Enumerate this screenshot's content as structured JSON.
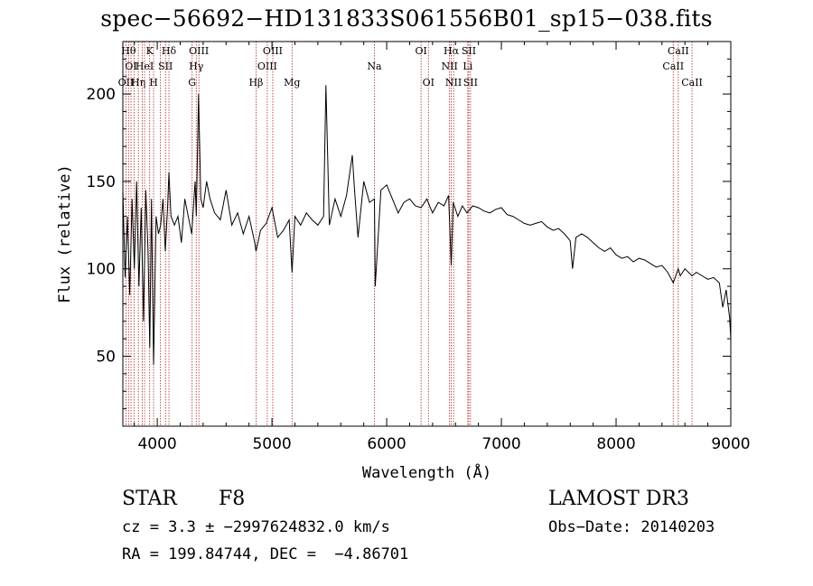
{
  "chart_data": {
    "type": "line",
    "title": "spec−56692−HD131833S061556B01_sp15−038.fits",
    "xlabel": "Wavelength (Å)",
    "ylabel": "Flux (relative)",
    "xlim": [
      3700,
      9000
    ],
    "ylim": [
      10,
      230
    ],
    "xticks": [
      4000,
      5000,
      6000,
      7000,
      8000,
      9000
    ],
    "yticks": [
      50,
      100,
      150,
      200
    ],
    "grid": false,
    "series": [
      {
        "color": "#000000",
        "x": [
          3700,
          3720,
          3740,
          3760,
          3780,
          3800,
          3820,
          3840,
          3860,
          3880,
          3900,
          3920,
          3935,
          3950,
          3968,
          3990,
          4010,
          4030,
          4050,
          4070,
          4090,
          4102,
          4120,
          4150,
          4180,
          4210,
          4240,
          4270,
          4300,
          4330,
          4340,
          4360,
          4380,
          4400,
          4430,
          4460,
          4500,
          4550,
          4600,
          4650,
          4700,
          4750,
          4800,
          4850,
          4861,
          4900,
          4950,
          5000,
          5050,
          5100,
          5150,
          5175,
          5200,
          5250,
          5300,
          5350,
          5400,
          5450,
          5470,
          5500,
          5550,
          5600,
          5650,
          5700,
          5720,
          5750,
          5800,
          5850,
          5893,
          5900,
          5950,
          6000,
          6050,
          6100,
          6150,
          6200,
          6250,
          6300,
          6350,
          6400,
          6450,
          6500,
          6540,
          6563,
          6580,
          6620,
          6660,
          6700,
          6750,
          6800,
          6850,
          6900,
          6950,
          7000,
          7050,
          7100,
          7150,
          7200,
          7250,
          7300,
          7350,
          7400,
          7450,
          7500,
          7550,
          7600,
          7620,
          7650,
          7700,
          7750,
          7800,
          7850,
          7900,
          7950,
          8000,
          8050,
          8100,
          8150,
          8200,
          8250,
          8300,
          8350,
          8400,
          8450,
          8498,
          8542,
          8560,
          8600,
          8662,
          8700,
          8750,
          8800,
          8850,
          8900,
          8930,
          8960,
          8990,
          9000
        ],
        "y": [
          145,
          95,
          130,
          85,
          140,
          100,
          150,
          90,
          135,
          70,
          145,
          110,
          55,
          140,
          45,
          130,
          120,
          125,
          140,
          110,
          135,
          155,
          130,
          125,
          130,
          115,
          140,
          130,
          120,
          150,
          130,
          200,
          140,
          135,
          150,
          140,
          132,
          128,
          145,
          125,
          132,
          120,
          130,
          115,
          110,
          122,
          126,
          135,
          118,
          122,
          128,
          98,
          130,
          125,
          132,
          128,
          125,
          130,
          205,
          125,
          140,
          130,
          142,
          165,
          145,
          118,
          150,
          138,
          140,
          90,
          145,
          148,
          140,
          132,
          138,
          140,
          136,
          135,
          140,
          132,
          138,
          136,
          142,
          102,
          138,
          130,
          136,
          132,
          136,
          135,
          133,
          132,
          134,
          135,
          131,
          130,
          128,
          126,
          125,
          126,
          127,
          124,
          122,
          123,
          120,
          116,
          100,
          118,
          120,
          118,
          115,
          112,
          110,
          112,
          108,
          106,
          107,
          104,
          106,
          105,
          103,
          101,
          102,
          98,
          92,
          100,
          96,
          100,
          96,
          98,
          96,
          94,
          95,
          92,
          78,
          88,
          72,
          60
        ]
      }
    ],
    "line_markers": [
      {
        "wavelength": 3727,
        "label": "OII",
        "row": 2
      },
      {
        "wavelength": 3750,
        "label": "Hθ",
        "row": 0
      },
      {
        "wavelength": 3771,
        "label": "OI",
        "row": 1
      },
      {
        "wavelength": 3798,
        "label": "",
        "row": 1
      },
      {
        "wavelength": 3835,
        "label": "Hη",
        "row": 2
      },
      {
        "wavelength": 3869,
        "label": "",
        "row": 1
      },
      {
        "wavelength": 3889,
        "label": "HeI",
        "row": 1
      },
      {
        "wavelength": 3934,
        "label": "K",
        "row": 0
      },
      {
        "wavelength": 3968,
        "label": "H",
        "row": 2
      },
      {
        "wavelength": 4026,
        "label": "",
        "row": 1
      },
      {
        "wavelength": 4072,
        "label": "SII",
        "row": 1
      },
      {
        "wavelength": 4102,
        "label": "Hδ",
        "row": 0
      },
      {
        "wavelength": 4304,
        "label": "G",
        "row": 2
      },
      {
        "wavelength": 4340,
        "label": "Hγ",
        "row": 1
      },
      {
        "wavelength": 4363,
        "label": "OIII",
        "row": 0
      },
      {
        "wavelength": 4861,
        "label": "Hβ",
        "row": 2
      },
      {
        "wavelength": 4959,
        "label": "OIII",
        "row": 1
      },
      {
        "wavelength": 5007,
        "label": "OIII",
        "row": 0
      },
      {
        "wavelength": 5175,
        "label": "Mg",
        "row": 2
      },
      {
        "wavelength": 5893,
        "label": "Na",
        "row": 1
      },
      {
        "wavelength": 6300,
        "label": "OI",
        "row": 0
      },
      {
        "wavelength": 6364,
        "label": "OI",
        "row": 2
      },
      {
        "wavelength": 6548,
        "label": "NII",
        "row": 1
      },
      {
        "wavelength": 6563,
        "label": "Hα",
        "row": 0
      },
      {
        "wavelength": 6583,
        "label": "NII",
        "row": 2
      },
      {
        "wavelength": 6707,
        "label": "Li",
        "row": 1
      },
      {
        "wavelength": 6716,
        "label": "SII",
        "row": 0
      },
      {
        "wavelength": 6731,
        "label": "SII",
        "row": 2
      },
      {
        "wavelength": 8498,
        "label": "CaII",
        "row": 1
      },
      {
        "wavelength": 8542,
        "label": "CaII",
        "row": 0
      },
      {
        "wavelength": 8662,
        "label": "CaII",
        "row": 2
      }
    ]
  },
  "info": {
    "object_class": "STAR",
    "subclass": "F8",
    "survey": "LAMOST DR3",
    "redshift": "cz = 3.3 ± −2997624832.0 km/s",
    "obs_date": "Obs−Date: 20140203",
    "coords": "RA = 199.84744, DEC =  −4.86701"
  },
  "colors": {
    "marker": "#b22222",
    "spectrum": "#000000",
    "frame": "#000000"
  }
}
